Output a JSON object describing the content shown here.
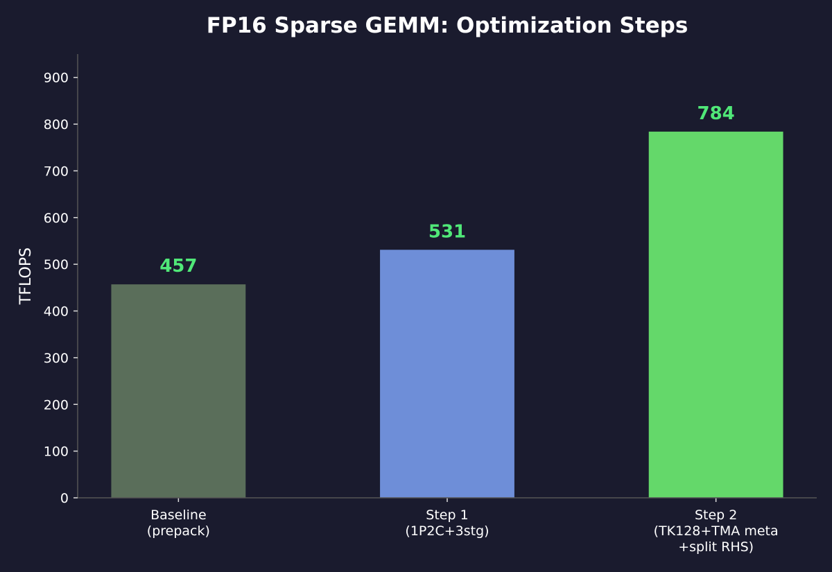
{
  "chart_data": {
    "type": "bar",
    "title": "FP16 Sparse GEMM: Optimization Steps",
    "xlabel": "",
    "ylabel": "TFLOPS",
    "categories": [
      [
        "Baseline",
        "(prepack)"
      ],
      [
        "Step 1",
        "(1P2C+3stg)"
      ],
      [
        "Step 2",
        "(TK128+TMA meta",
        "+split RHS)"
      ]
    ],
    "values": [
      457,
      531,
      784
    ],
    "data_labels": [
      "457",
      "531",
      "784"
    ],
    "bar_colors": [
      "#5a6e5a",
      "#6e8ed8",
      "#64d86a"
    ],
    "label_color": "#50e878",
    "ylim": [
      0,
      950
    ],
    "yticks": [
      0,
      100,
      200,
      300,
      400,
      500,
      600,
      700,
      800,
      900
    ],
    "grid": false,
    "background": "#1a1b2e",
    "text_color": "#ffffff",
    "axis_color": "#555555"
  }
}
